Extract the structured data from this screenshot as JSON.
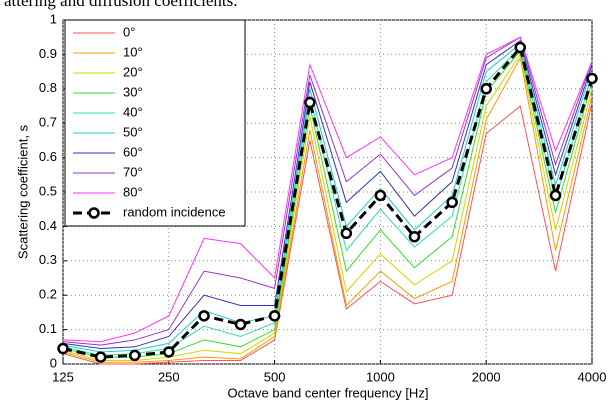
{
  "caption": "attering and diffusion coefficients.",
  "chart_data": {
    "type": "line",
    "xlabel": "Octave band center frequency [Hz]",
    "ylabel": "Scattering coefficient, s",
    "x": [
      125,
      160,
      200,
      250,
      315,
      400,
      500,
      630,
      800,
      1000,
      1250,
      1600,
      2000,
      2500,
      3150,
      4000
    ],
    "xlim": [
      125,
      4000
    ],
    "xscale": "log",
    "xticks": [
      125,
      250,
      500,
      1000,
      2000,
      4000
    ],
    "ylim": [
      0,
      1
    ],
    "yticks": [
      0,
      0.1,
      0.2,
      0.3,
      0.4,
      0.5,
      0.6,
      0.7,
      0.8,
      0.9,
      1
    ],
    "grid": true,
    "legend": "upper left",
    "series": [
      {
        "name": "0°",
        "color": "#ff5050",
        "values": [
          0.03,
          0,
          0,
          0.005,
          0.01,
          0.01,
          0.07,
          0.65,
          0.16,
          0.24,
          0.175,
          0.2,
          0.67,
          0.75,
          0.27,
          0.76
        ]
      },
      {
        "name": "10°",
        "color": "#ff9900",
        "values": [
          0.035,
          0.005,
          0.005,
          0.01,
          0.02,
          0.015,
          0.08,
          0.68,
          0.17,
          0.27,
          0.19,
          0.24,
          0.71,
          0.89,
          0.33,
          0.78
        ]
      },
      {
        "name": "20°",
        "color": "#d4d400",
        "values": [
          0.04,
          0.01,
          0.01,
          0.02,
          0.04,
          0.03,
          0.09,
          0.72,
          0.21,
          0.32,
          0.23,
          0.3,
          0.75,
          0.9,
          0.39,
          0.8
        ]
      },
      {
        "name": "30°",
        "color": "#33dd33",
        "values": [
          0.045,
          0.02,
          0.02,
          0.03,
          0.07,
          0.05,
          0.1,
          0.75,
          0.27,
          0.39,
          0.28,
          0.37,
          0.79,
          0.91,
          0.44,
          0.82
        ]
      },
      {
        "name": "40°",
        "color": "#33ddaa",
        "values": [
          0.05,
          0.025,
          0.03,
          0.045,
          0.11,
          0.08,
          0.12,
          0.78,
          0.33,
          0.45,
          0.34,
          0.43,
          0.82,
          0.92,
          0.48,
          0.84
        ]
      },
      {
        "name": "50°",
        "color": "#22cccc",
        "values": [
          0.055,
          0.035,
          0.04,
          0.06,
          0.155,
          0.12,
          0.14,
          0.8,
          0.4,
          0.51,
          0.39,
          0.49,
          0.85,
          0.93,
          0.52,
          0.86
        ]
      },
      {
        "name": "60°",
        "color": "#3333bb",
        "values": [
          0.06,
          0.045,
          0.05,
          0.08,
          0.2,
          0.17,
          0.17,
          0.82,
          0.47,
          0.56,
          0.43,
          0.53,
          0.87,
          0.94,
          0.55,
          0.87
        ]
      },
      {
        "name": "70°",
        "color": "#9933cc",
        "values": [
          0.065,
          0.055,
          0.07,
          0.1,
          0.27,
          0.25,
          0.22,
          0.84,
          0.53,
          0.61,
          0.49,
          0.57,
          0.89,
          0.95,
          0.58,
          0.88
        ]
      },
      {
        "name": "80°",
        "color": "#ff33ff",
        "values": [
          0.07,
          0.065,
          0.09,
          0.14,
          0.365,
          0.35,
          0.25,
          0.87,
          0.6,
          0.66,
          0.55,
          0.6,
          0.9,
          0.95,
          0.62,
          0.88
        ]
      },
      {
        "name": "random incidence",
        "color": "#000000",
        "dashed": true,
        "marker": "circle",
        "values": [
          0.045,
          0.02,
          0.025,
          0.035,
          0.14,
          0.115,
          0.14,
          0.76,
          0.38,
          0.49,
          0.37,
          0.47,
          0.8,
          0.92,
          0.49,
          0.83
        ]
      }
    ]
  }
}
